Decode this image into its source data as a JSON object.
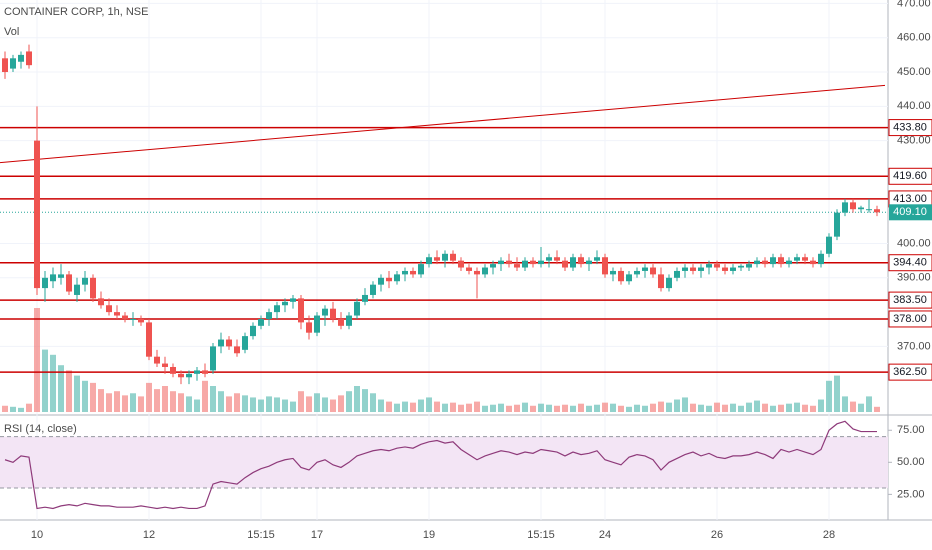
{
  "chart_data": [
    {
      "type": "candlestick",
      "title": "CONTAINER CORP, 1h, NSE",
      "categories": [
        null,
        null,
        null,
        null,
        "10",
        null,
        null,
        null,
        null,
        null,
        null,
        null,
        null,
        null,
        null,
        null,
        null,
        null,
        "12",
        null,
        null,
        null,
        null,
        null,
        null,
        null,
        null,
        null,
        null,
        null,
        null,
        null,
        "15:15",
        null,
        null,
        null,
        null,
        null,
        null,
        "17",
        null,
        null,
        null,
        null,
        null,
        null,
        null,
        null,
        null,
        null,
        null,
        null,
        null,
        "19",
        null,
        null,
        null,
        null,
        null,
        null,
        null,
        null,
        null,
        null,
        null,
        null,
        null,
        "15:15",
        null,
        null,
        null,
        null,
        null,
        null,
        null,
        "24",
        null,
        null,
        null,
        null,
        null,
        null,
        null,
        null,
        null,
        null,
        null,
        null,
        null,
        "26",
        null,
        null,
        null,
        null,
        null,
        null,
        null,
        null,
        null,
        null,
        null,
        null,
        null,
        "28",
        null,
        null,
        null,
        null,
        null,
        null
      ],
      "candles": [
        [
          454,
          456,
          448,
          450
        ],
        [
          451,
          455,
          450,
          454
        ],
        [
          453,
          456,
          451,
          455
        ],
        [
          456,
          458,
          451,
          452
        ],
        [
          430,
          440,
          385,
          387
        ],
        [
          387,
          392,
          383,
          390
        ],
        [
          389,
          393,
          387,
          391
        ],
        [
          390,
          394,
          388,
          391
        ],
        [
          391,
          392,
          385,
          386
        ],
        [
          385,
          390,
          383,
          388
        ],
        [
          388,
          392,
          386,
          390
        ],
        [
          390,
          391,
          383,
          384
        ],
        [
          384,
          386,
          381,
          382
        ],
        [
          382,
          384,
          379,
          380
        ],
        [
          380,
          382,
          378,
          379
        ],
        [
          379,
          380,
          377,
          378
        ],
        [
          378,
          380,
          376,
          378
        ],
        [
          378,
          379,
          376,
          377
        ],
        [
          377,
          378,
          366,
          367
        ],
        [
          367,
          369,
          364,
          365
        ],
        [
          365,
          367,
          362,
          364
        ],
        [
          364,
          365,
          361,
          362
        ],
        [
          362,
          363,
          359,
          361
        ],
        [
          361,
          363,
          359,
          362
        ],
        [
          362,
          364,
          360,
          363
        ],
        [
          363,
          365,
          361,
          362
        ],
        [
          363,
          371,
          362,
          370
        ],
        [
          370,
          374,
          368,
          372
        ],
        [
          372,
          373,
          369,
          370
        ],
        [
          370,
          372,
          367,
          368
        ],
        [
          369,
          374,
          368,
          373
        ],
        [
          373,
          377,
          372,
          376
        ],
        [
          376,
          379,
          375,
          378
        ],
        [
          378,
          381,
          376,
          380
        ],
        [
          380,
          383,
          378,
          382
        ],
        [
          382,
          384,
          380,
          383
        ],
        [
          383,
          385,
          381,
          384
        ],
        [
          384,
          385,
          375,
          377
        ],
        [
          377,
          379,
          372,
          374
        ],
        [
          374,
          380,
          373,
          379
        ],
        [
          379,
          382,
          376,
          381
        ],
        [
          381,
          383,
          377,
          378
        ],
        [
          378,
          380,
          375,
          376
        ],
        [
          376,
          380,
          375,
          379
        ],
        [
          379,
          384,
          378,
          383
        ],
        [
          383,
          387,
          382,
          385
        ],
        [
          385,
          389,
          384,
          388
        ],
        [
          388,
          391,
          386,
          390
        ],
        [
          390,
          392,
          387,
          389
        ],
        [
          389,
          392,
          388,
          391
        ],
        [
          391,
          393,
          389,
          392
        ],
        [
          392,
          393,
          390,
          391
        ],
        [
          391,
          395,
          390,
          394
        ],
        [
          394,
          397,
          393,
          396
        ],
        [
          396,
          398,
          394,
          395
        ],
        [
          395,
          398,
          393,
          397
        ],
        [
          397,
          398,
          394,
          395
        ],
        [
          395,
          396,
          392,
          393
        ],
        [
          393,
          394,
          391,
          392
        ],
        [
          392,
          393,
          384,
          391
        ],
        [
          391,
          394,
          390,
          393
        ],
        [
          393,
          395,
          391,
          394
        ],
        [
          394,
          396,
          392,
          395
        ],
        [
          395,
          397,
          393,
          394
        ],
        [
          394,
          396,
          392,
          393
        ],
        [
          393,
          396,
          392,
          395
        ],
        [
          395,
          396,
          393,
          394
        ],
        [
          394,
          399,
          393,
          395
        ],
        [
          395,
          397,
          393,
          396
        ],
        [
          396,
          398,
          394,
          395
        ],
        [
          395,
          396,
          392,
          393
        ],
        [
          393,
          397,
          392,
          396
        ],
        [
          396,
          397,
          393,
          394
        ],
        [
          394,
          396,
          392,
          395
        ],
        [
          395,
          398,
          394,
          396
        ],
        [
          396,
          397,
          390,
          391
        ],
        [
          391,
          393,
          389,
          392
        ],
        [
          392,
          393,
          388,
          389
        ],
        [
          389,
          392,
          388,
          391
        ],
        [
          391,
          393,
          390,
          392
        ],
        [
          392,
          394,
          390,
          393
        ],
        [
          393,
          394,
          390,
          391
        ],
        [
          391,
          393,
          386,
          387
        ],
        [
          387,
          391,
          386,
          390
        ],
        [
          390,
          393,
          389,
          392
        ],
        [
          392,
          394,
          390,
          393
        ],
        [
          393,
          394,
          391,
          392
        ],
        [
          392,
          394,
          390,
          393
        ],
        [
          393,
          395,
          391,
          394
        ],
        [
          394,
          395,
          392,
          393
        ],
        [
          393,
          394,
          391,
          392
        ],
        [
          392,
          394,
          391,
          393
        ],
        [
          393,
          394,
          392,
          393.5
        ],
        [
          393,
          395,
          392,
          394
        ],
        [
          394,
          396,
          393,
          395
        ],
        [
          395,
          396,
          393,
          394
        ],
        [
          394,
          397,
          393,
          396
        ],
        [
          396,
          397,
          393,
          394
        ],
        [
          394,
          396,
          393,
          395
        ],
        [
          395,
          397,
          394,
          396
        ],
        [
          396,
          397,
          394,
          395
        ],
        [
          395,
          396,
          393,
          394
        ],
        [
          394,
          398,
          393,
          397
        ],
        [
          397,
          403,
          396,
          402
        ],
        [
          402,
          410,
          401,
          409
        ],
        [
          409,
          413,
          408,
          412
        ],
        [
          412,
          413,
          409,
          410
        ],
        [
          410,
          411,
          409,
          410.5
        ],
        [
          410,
          413,
          409,
          410
        ],
        [
          410,
          411,
          408,
          409.1
        ]
      ],
      "up_color": "#26a69a",
      "down_color": "#ef5350",
      "ylim": [
        350,
        471
      ],
      "yticks": [
        {
          "value": 470,
          "label": "470.00"
        },
        {
          "value": 460,
          "label": "460.00"
        },
        {
          "value": 450,
          "label": "450.00"
        },
        {
          "value": 440,
          "label": "440.00"
        },
        {
          "value": 430,
          "label": "430.00"
        },
        {
          "value": 400,
          "label": "400.00"
        },
        {
          "value": 390,
          "label": "390.00"
        },
        {
          "value": 370,
          "label": "370.00"
        }
      ],
      "levels": [
        {
          "value": 433.8,
          "label": "433.80"
        },
        {
          "value": 419.6,
          "label": "419.60"
        },
        {
          "value": 413,
          "label": "413.00"
        },
        {
          "value": 394.4,
          "label": "394.40"
        },
        {
          "value": 383.5,
          "label": "383.50"
        },
        {
          "value": 378,
          "label": "378.00"
        },
        {
          "value": 362.5,
          "label": "362.50"
        }
      ],
      "level_color": "#cc0000",
      "last": {
        "value": 409.1,
        "label": "409.10"
      },
      "trendline": [
        423.6,
        446.1
      ],
      "volume": {
        "name": "Vol",
        "vlim": [
          0,
          100
        ],
        "values": [
          6,
          5,
          4,
          8,
          100,
          60,
          55,
          45,
          40,
          35,
          30,
          28,
          22,
          18,
          20,
          16,
          18,
          15,
          28,
          22,
          25,
          20,
          18,
          15,
          12,
          30,
          25,
          20,
          15,
          18,
          16,
          14,
          12,
          15,
          14,
          12,
          10,
          20,
          15,
          18,
          14,
          12,
          16,
          20,
          25,
          22,
          18,
          12,
          10,
          8,
          10,
          9,
          12,
          14,
          10,
          8,
          9,
          7,
          8,
          10,
          6,
          7,
          8,
          6,
          7,
          9,
          6,
          8,
          7,
          6,
          7,
          6,
          8,
          6,
          7,
          9,
          8,
          6,
          5,
          7,
          6,
          8,
          10,
          9,
          12,
          14,
          8,
          7,
          6,
          9,
          7,
          8,
          6,
          9,
          11,
          8,
          6,
          7,
          8,
          9,
          7,
          6,
          12,
          30,
          35,
          15,
          10,
          8,
          15,
          5
        ]
      },
      "grid": true
    },
    {
      "type": "line",
      "title": "RSI (14, close)",
      "color": "#8e3a7a",
      "values": [
        52,
        50,
        55,
        54,
        14,
        15,
        14,
        16,
        17,
        16,
        18,
        17,
        16,
        16,
        15,
        15,
        15,
        16,
        15,
        14,
        15,
        14,
        15,
        14,
        14,
        16,
        33,
        35,
        34,
        33,
        38,
        42,
        45,
        47,
        50,
        52,
        53,
        46,
        44,
        50,
        52,
        48,
        46,
        50,
        55,
        57,
        59,
        60,
        59,
        61,
        62,
        61,
        64,
        66,
        67,
        65,
        66,
        60,
        56,
        52,
        55,
        57,
        59,
        58,
        56,
        58,
        57,
        60,
        59,
        58,
        55,
        58,
        56,
        57,
        59,
        52,
        50,
        48,
        54,
        56,
        55,
        52,
        44,
        50,
        53,
        56,
        58,
        55,
        57,
        54,
        53,
        55,
        55,
        56,
        58,
        56,
        53,
        60,
        58,
        60,
        58,
        56,
        60,
        75,
        80,
        82,
        76,
        74,
        74,
        74
      ],
      "ylim": [
        5,
        83
      ],
      "yticks": [
        {
          "value": 75,
          "label": "75.00"
        },
        {
          "value": 50,
          "label": "50.00"
        },
        {
          "value": 25,
          "label": "25.00"
        }
      ],
      "band": [
        30,
        70
      ],
      "band_color": "#f3e5f5"
    }
  ]
}
